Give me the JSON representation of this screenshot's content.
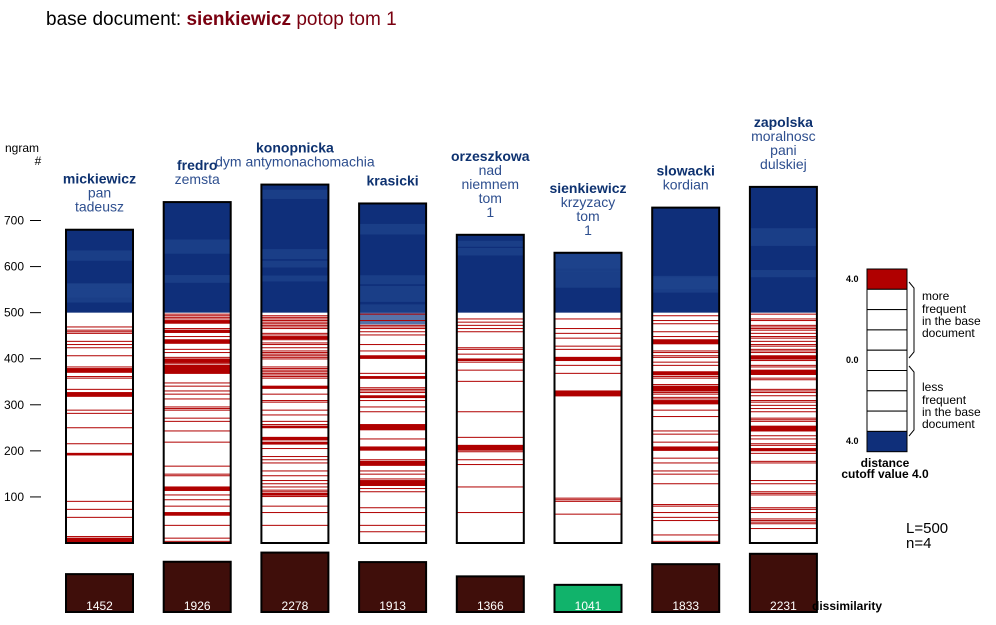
{
  "title": {
    "prefix": "base document: ",
    "author": "sienkiewicz",
    "work": " potop tom 1"
  },
  "axis": {
    "label_line1": "ngram",
    "label_line2": "#",
    "ticks": [
      100,
      200,
      300,
      400,
      500,
      600,
      700
    ]
  },
  "legend": {
    "top_value": "4.0",
    "mid_value": "0.0",
    "bottom_value": "4.0",
    "more_text": [
      "more",
      "frequent",
      "in the base",
      "document"
    ],
    "less_text": [
      "less",
      "frequent",
      "in the base",
      "document"
    ],
    "caption1": "distance",
    "caption2": "cutoff value 4.0"
  },
  "params": {
    "line1": "L=500",
    "line2": "n=4"
  },
  "dissimilarity_label": "dissimilarity",
  "colors": {
    "red": "#b00000",
    "blue": "#0f2f7a",
    "blue_light": "#1f448c",
    "dissim_box": "#3f0e0a",
    "dissim_best": "#11b36b",
    "title_accent": "#7a0010",
    "author_label": "#0e3270",
    "work_label": "#2e4f8f"
  },
  "chart_data": {
    "type": "bar",
    "base_document": "sienkiewicz potop tom 1",
    "ylabel": "ngram #",
    "ylim": [
      0,
      800
    ],
    "red_zone_top": 500,
    "series": [
      {
        "author": "mickiewicz",
        "work": [
          "pan",
          "tadeusz"
        ],
        "ngrams": 680,
        "dissimilarity": 1452,
        "red_density": 0.22,
        "seed": 11
      },
      {
        "author": "fredro",
        "work": [
          "zemsta"
        ],
        "ngrams": 740,
        "dissimilarity": 1926,
        "red_density": 0.4,
        "seed": 23
      },
      {
        "author": "konopnicka",
        "work": [
          "dym antymonachomachia"
        ],
        "ngrams": 778,
        "dissimilarity": 2278,
        "red_density": 0.5,
        "seed": 37
      },
      {
        "author": "krasicki",
        "work": [],
        "ngrams": 737,
        "dissimilarity": 1913,
        "red_density": 0.4,
        "seed": 41
      },
      {
        "author": "orzeszkowa",
        "work": [
          "nad",
          "niemnem",
          "tom",
          "1"
        ],
        "ngrams": 669,
        "dissimilarity": 1366,
        "red_density": 0.17,
        "seed": 53
      },
      {
        "author": "sienkiewicz",
        "work": [
          "krzyzacy",
          "tom",
          "1"
        ],
        "ngrams": 630,
        "dissimilarity": 1041,
        "red_density": 0.11,
        "seed": 67
      },
      {
        "author": "slowacki",
        "work": [
          "kordian"
        ],
        "ngrams": 728,
        "dissimilarity": 1833,
        "red_density": 0.38,
        "seed": 71
      },
      {
        "author": "zapolska",
        "work": [
          "moralnosc",
          "pani",
          "dulskiej"
        ],
        "ngrams": 773,
        "dissimilarity": 2231,
        "red_density": 0.47,
        "seed": 89
      }
    ],
    "best_match": "sienkiewicz"
  }
}
